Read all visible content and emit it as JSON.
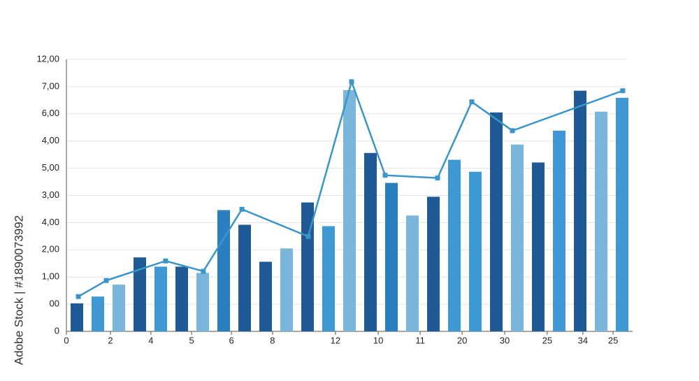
{
  "chart_data": {
    "type": "bar-line",
    "watermark": "Adobe Stock | #1890073992",
    "xlim": [
      0,
      27
    ],
    "ylim": [
      0,
      10
    ],
    "grid": true,
    "yticks": [
      {
        "value": 0,
        "label": "0"
      },
      {
        "value": 1,
        "label": "00"
      },
      {
        "value": 2,
        "label": "1,00"
      },
      {
        "value": 3,
        "label": "2,00"
      },
      {
        "value": 4,
        "label": "4,00"
      },
      {
        "value": 5,
        "label": "3,00"
      },
      {
        "value": 6,
        "label": "5,00"
      },
      {
        "value": 7,
        "label": "4,00"
      },
      {
        "value": 8,
        "label": "6,00"
      },
      {
        "value": 9,
        "label": "7,00"
      },
      {
        "value": 10,
        "label": "12,00"
      }
    ],
    "xticks": [
      {
        "value": 0,
        "label": "0"
      },
      {
        "value": 2.1,
        "label": "2"
      },
      {
        "value": 4.03,
        "label": "4"
      },
      {
        "value": 5.97,
        "label": "5"
      },
      {
        "value": 7.87,
        "label": "6"
      },
      {
        "value": 9.83,
        "label": "8"
      },
      {
        "value": 12.83,
        "label": "12"
      },
      {
        "value": 14.87,
        "label": "10"
      },
      {
        "value": 16.87,
        "label": "11"
      },
      {
        "value": 18.87,
        "label": "20"
      },
      {
        "value": 20.9,
        "label": "30"
      },
      {
        "value": 22.93,
        "label": "25"
      },
      {
        "value": 24.63,
        "label": "34"
      },
      {
        "value": 26.07,
        "label": "25"
      }
    ],
    "bars": {
      "x": [
        0.5,
        1.5,
        2.5,
        3.5,
        4.5,
        5.5,
        6.5,
        7.5,
        8.5,
        9.5,
        10.5,
        11.5,
        12.5,
        13.5,
        14.5,
        15.5,
        16.5,
        17.5,
        18.5,
        19.5,
        20.5,
        21.5,
        22.5,
        23.5,
        24.5,
        25.5,
        26.5
      ],
      "values": [
        1.03,
        1.28,
        1.72,
        2.72,
        2.38,
        2.38,
        2.15,
        4.46,
        3.92,
        2.56,
        3.05,
        4.74,
        3.87,
        8.87,
        6.56,
        5.46,
        4.26,
        4.95,
        6.31,
        5.87,
        8.05,
        6.87,
        6.21,
        7.38,
        8.85,
        8.08,
        8.59
      ],
      "colors": [
        "#1f5a96",
        "#3d98d3",
        "#7ab6dc",
        "#1f5a96",
        "#3d98d3",
        "#1f5a96",
        "#7ab6dc",
        "#2a7fc0",
        "#1f5a96",
        "#1f5a96",
        "#7ab6dc",
        "#1f5a96",
        "#3d98d3",
        "#7ab6dc",
        "#1f5a96",
        "#2a7fc0",
        "#7ab6dc",
        "#1f5a96",
        "#3d98d3",
        "#3d98d3",
        "#1f5a96",
        "#7ab6dc",
        "#1f5a96",
        "#3d98d3",
        "#1f5a96",
        "#7ab6dc",
        "#3d98d3"
      ]
    },
    "line": {
      "color": "#3a95c9",
      "x": [
        0.57,
        1.9,
        4.73,
        6.53,
        8.37,
        11.53,
        13.6,
        15.2,
        17.7,
        19.33,
        21.27,
        26.53
      ],
      "values": [
        1.28,
        1.87,
        2.59,
        2.21,
        4.49,
        3.49,
        9.18,
        5.74,
        5.64,
        8.44,
        7.38,
        8.85
      ]
    }
  }
}
